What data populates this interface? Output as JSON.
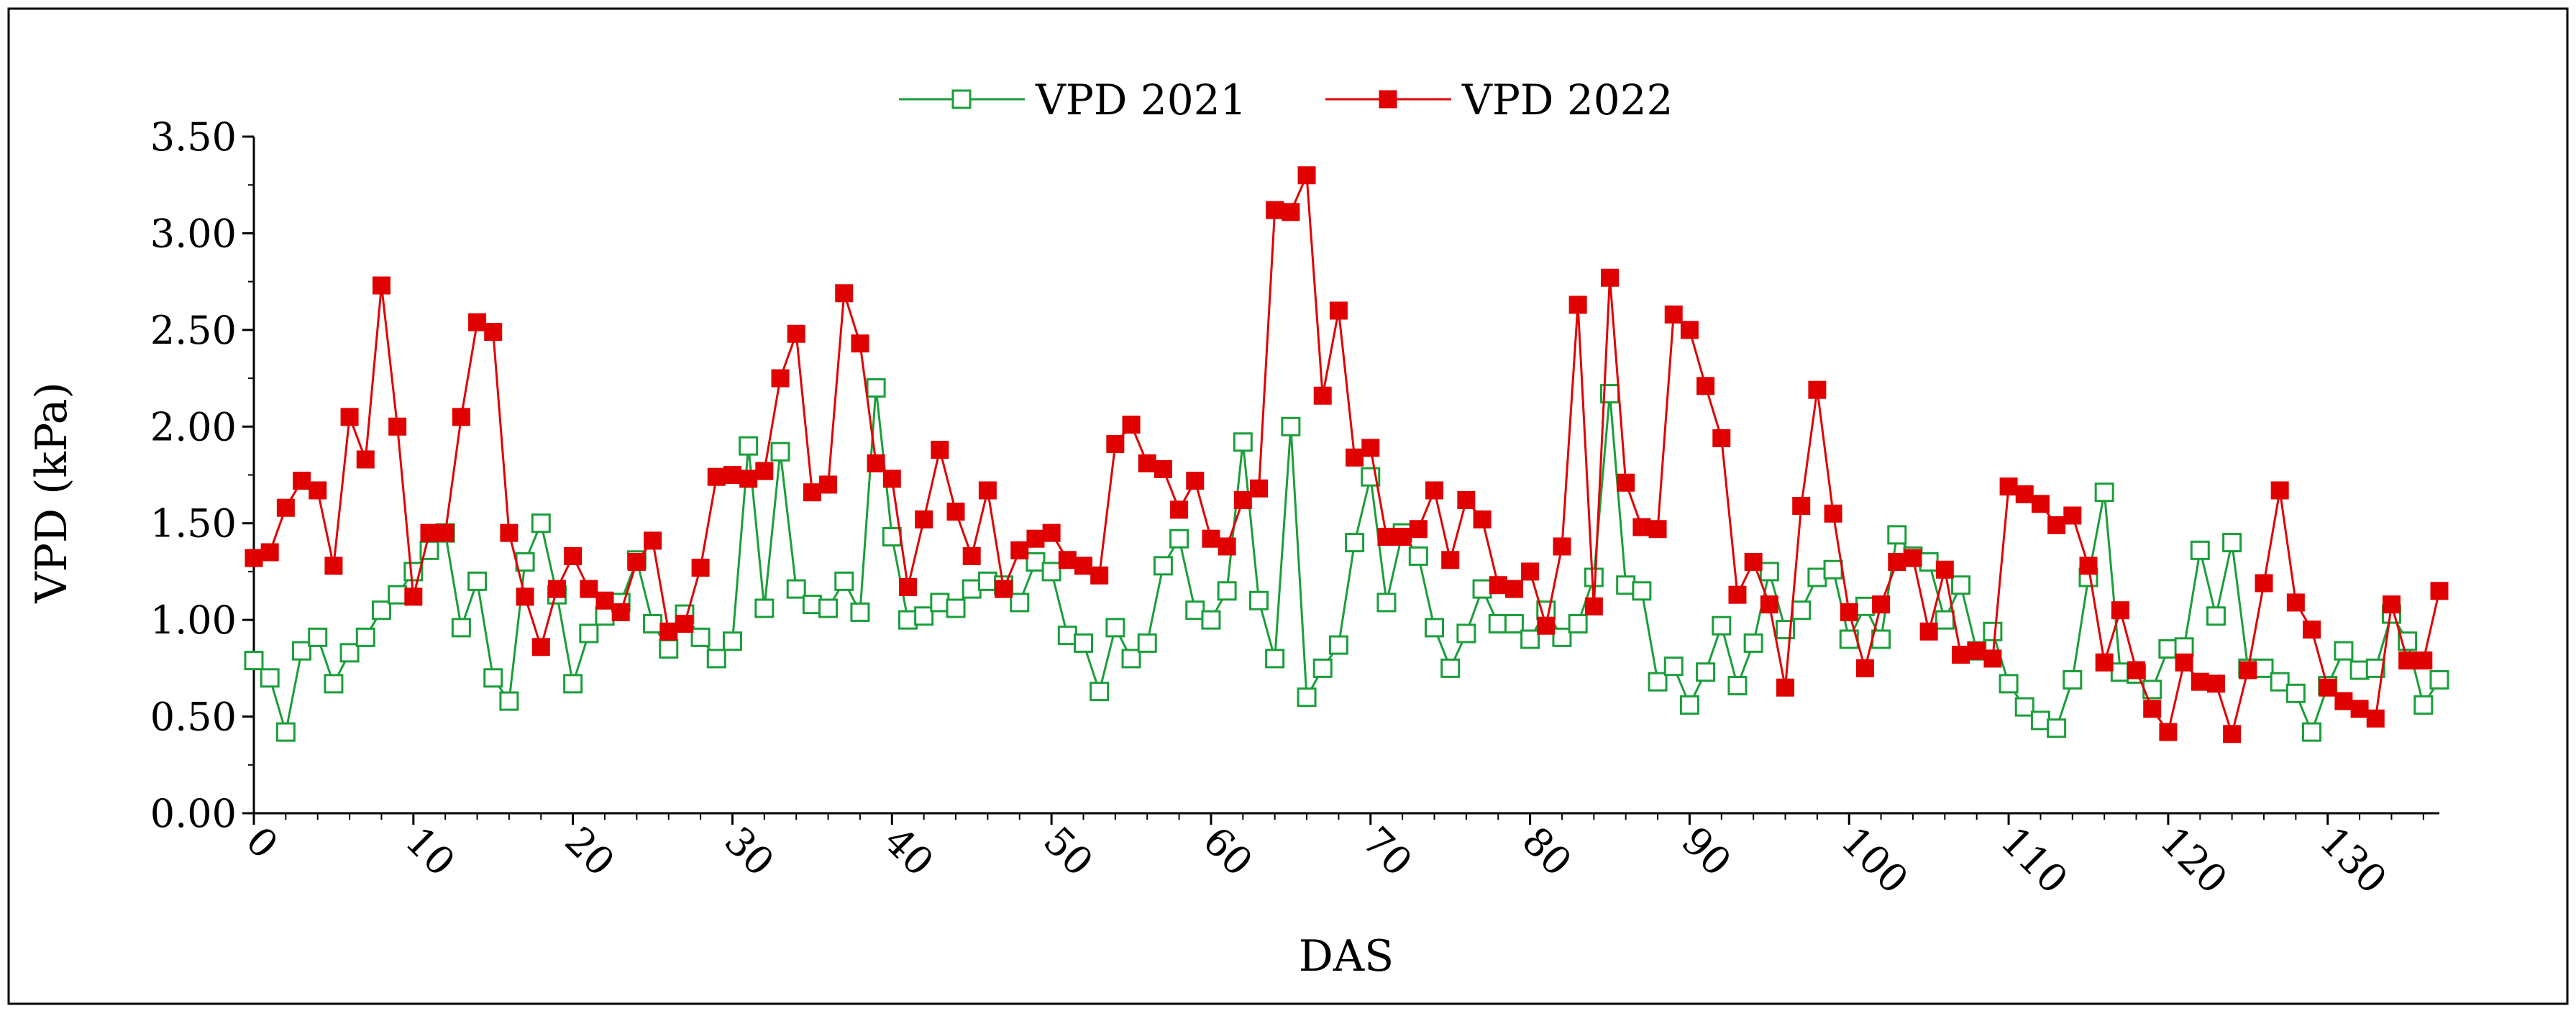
{
  "chart_data": {
    "type": "line",
    "title": "",
    "xlabel": "DAS",
    "ylabel": "VPD (kPa)",
    "xlim": [
      0,
      137
    ],
    "ylim": [
      0,
      3.5
    ],
    "x_ticks": [
      0,
      10,
      20,
      30,
      40,
      50,
      60,
      70,
      80,
      90,
      100,
      110,
      120,
      130
    ],
    "x_tick_labels": [
      "0",
      "10",
      "20",
      "30",
      "40",
      "50",
      "60",
      "70",
      "80",
      "90",
      "100",
      "110",
      "120",
      "130"
    ],
    "y_ticks": [
      0,
      0.5,
      1,
      1.5,
      2,
      2.5,
      3,
      3.5
    ],
    "y_tick_labels": [
      "0.00",
      "0.50",
      "1.00",
      "1.50",
      "2.00",
      "2.50",
      "3.00",
      "3.50"
    ],
    "legend_position": "top-center",
    "series": [
      {
        "name": "VPD 2021",
        "color": "#1a9e3a",
        "marker": "open-square",
        "x": [
          0,
          1,
          2,
          3,
          4,
          5,
          6,
          7,
          8,
          9,
          10,
          11,
          12,
          13,
          14,
          15,
          16,
          17,
          18,
          19,
          20,
          21,
          22,
          23,
          24,
          25,
          26,
          27,
          28,
          29,
          30,
          31,
          32,
          33,
          34,
          35,
          36,
          37,
          38,
          39,
          40,
          41,
          42,
          43,
          44,
          45,
          46,
          47,
          48,
          49,
          50,
          51,
          52,
          53,
          54,
          55,
          56,
          57,
          58,
          59,
          60,
          61,
          62,
          63,
          64,
          65,
          66,
          67,
          68,
          69,
          70,
          71,
          72,
          73,
          74,
          75,
          76,
          77,
          78,
          79,
          80,
          81,
          82,
          83,
          84,
          85,
          86,
          87,
          88,
          89,
          90,
          91,
          92,
          93,
          94,
          95,
          96,
          97,
          98,
          99,
          100,
          101,
          102,
          103,
          104,
          105,
          106,
          107,
          108,
          109,
          110,
          111,
          112,
          113,
          114,
          115,
          116,
          117,
          118,
          119,
          120,
          121,
          122,
          123,
          124,
          125,
          126,
          127,
          128,
          129,
          130,
          131,
          132,
          133,
          134,
          135,
          136,
          137
        ],
        "values": [
          0.79,
          0.7,
          0.42,
          0.84,
          0.91,
          0.67,
          0.83,
          0.91,
          1.05,
          1.13,
          1.25,
          1.36,
          1.45,
          0.96,
          1.2,
          0.7,
          0.58,
          1.3,
          1.5,
          1.13,
          0.67,
          0.93,
          1.02,
          1.09,
          1.31,
          0.98,
          0.85,
          1.03,
          0.91,
          0.8,
          0.89,
          1.9,
          1.06,
          1.87,
          1.16,
          1.08,
          1.06,
          1.2,
          1.04,
          2.2,
          1.43,
          1.0,
          1.02,
          1.09,
          1.06,
          1.16,
          1.2,
          1.18,
          1.09,
          1.3,
          1.25,
          0.92,
          0.88,
          0.63,
          0.96,
          0.8,
          0.88,
          1.28,
          1.42,
          1.05,
          1.0,
          1.15,
          1.92,
          1.1,
          0.8,
          2.0,
          0.6,
          0.75,
          0.87,
          1.4,
          1.74,
          1.09,
          1.45,
          1.33,
          0.96,
          0.75,
          0.93,
          1.16,
          0.98,
          0.98,
          0.9,
          1.05,
          0.91,
          0.98,
          1.22,
          2.17,
          1.18,
          1.15,
          0.68,
          0.76,
          0.56,
          0.73,
          0.97,
          0.66,
          0.88,
          1.25,
          0.95,
          1.05,
          1.22,
          1.26,
          0.9,
          1.07,
          0.9,
          1.44,
          1.33,
          1.3,
          1.0,
          1.18,
          0.84,
          0.94,
          0.67,
          0.55,
          0.48,
          0.44,
          0.69,
          1.22,
          1.66,
          0.73,
          0.72,
          0.64,
          0.85,
          0.86,
          1.36,
          1.02,
          1.4,
          0.75,
          0.75,
          0.68,
          0.62,
          0.42,
          0.66,
          0.84,
          0.74,
          0.75,
          1.03,
          0.89,
          0.56,
          0.69
        ]
      },
      {
        "name": "VPD 2022",
        "color": "#e00000",
        "marker": "filled-square",
        "x": [
          0,
          1,
          2,
          3,
          4,
          5,
          6,
          7,
          8,
          9,
          10,
          11,
          12,
          13,
          14,
          15,
          16,
          17,
          18,
          19,
          20,
          21,
          22,
          23,
          24,
          25,
          26,
          27,
          28,
          29,
          30,
          31,
          32,
          33,
          34,
          35,
          36,
          37,
          38,
          39,
          40,
          41,
          42,
          43,
          44,
          45,
          46,
          47,
          48,
          49,
          50,
          51,
          52,
          53,
          54,
          55,
          56,
          57,
          58,
          59,
          60,
          61,
          62,
          63,
          64,
          65,
          66,
          67,
          68,
          69,
          70,
          71,
          72,
          73,
          74,
          75,
          76,
          77,
          78,
          79,
          80,
          81,
          82,
          83,
          84,
          85,
          86,
          87,
          88,
          89,
          90,
          91,
          92,
          93,
          94,
          95,
          96,
          97,
          98,
          99,
          100,
          101,
          102,
          103,
          104,
          105,
          106,
          107,
          108,
          109,
          110,
          111,
          112,
          113,
          114,
          115,
          116,
          117,
          118,
          119,
          120,
          121,
          122,
          123,
          124,
          125,
          126,
          127,
          128,
          129,
          130,
          131,
          132,
          133,
          134,
          135,
          136,
          137
        ],
        "values": [
          1.32,
          1.35,
          1.58,
          1.72,
          1.67,
          1.28,
          2.05,
          1.83,
          2.73,
          2.0,
          1.12,
          1.45,
          1.45,
          2.05,
          2.54,
          2.49,
          1.45,
          1.12,
          0.86,
          1.16,
          1.33,
          1.16,
          1.1,
          1.04,
          1.3,
          1.41,
          0.94,
          0.98,
          1.27,
          1.74,
          1.75,
          1.73,
          1.77,
          2.25,
          2.48,
          1.66,
          1.7,
          2.69,
          2.43,
          1.81,
          1.73,
          1.17,
          1.52,
          1.88,
          1.56,
          1.33,
          1.67,
          1.16,
          1.36,
          1.42,
          1.45,
          1.31,
          1.28,
          1.23,
          1.91,
          2.01,
          1.81,
          1.78,
          1.57,
          1.72,
          1.42,
          1.38,
          1.62,
          1.68,
          3.12,
          3.11,
          3.3,
          2.16,
          2.6,
          1.84,
          1.89,
          1.43,
          1.43,
          1.47,
          1.67,
          1.31,
          1.62,
          1.52,
          1.18,
          1.16,
          1.25,
          0.97,
          1.38,
          2.63,
          1.07,
          2.77,
          1.71,
          1.48,
          1.47,
          2.58,
          2.5,
          2.21,
          1.94,
          1.13,
          1.3,
          1.08,
          0.65,
          1.59,
          2.19,
          1.55,
          1.04,
          0.75,
          1.08,
          1.3,
          1.32,
          0.94,
          1.26,
          0.82,
          0.84,
          0.8,
          1.69,
          1.65,
          1.6,
          1.49,
          1.54,
          1.28,
          0.78,
          1.05,
          0.74,
          0.54,
          0.42,
          0.78,
          0.68,
          0.67,
          0.41,
          0.74,
          1.19,
          1.67,
          1.09,
          0.95,
          0.65,
          0.58,
          0.54,
          0.49,
          1.08,
          0.79,
          0.79,
          1.15
        ]
      }
    ]
  }
}
